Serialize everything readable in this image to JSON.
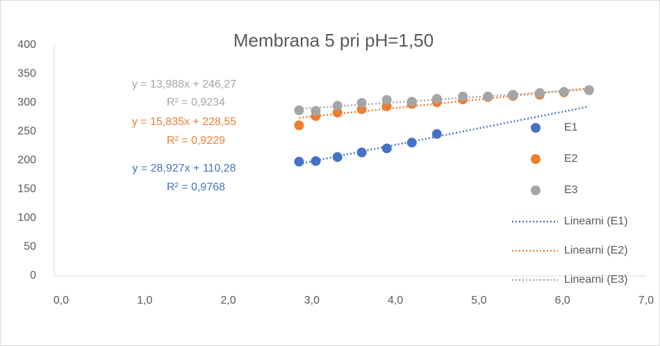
{
  "chart_data": {
    "type": "scatter",
    "title": "Membrana 5 pri pH=1,50",
    "xlim": [
      0,
      7
    ],
    "xticks": [
      {
        "value": 0,
        "label": "0,0"
      },
      {
        "value": 1,
        "label": "1,0"
      },
      {
        "value": 2,
        "label": "2,0"
      },
      {
        "value": 3,
        "label": "3,0"
      },
      {
        "value": 4,
        "label": "4,0"
      },
      {
        "value": 5,
        "label": "5,0"
      },
      {
        "value": 6,
        "label": "6,0"
      },
      {
        "value": 7,
        "label": "7,0"
      }
    ],
    "ylim": [
      0,
      400
    ],
    "yticks": [
      0,
      50,
      100,
      150,
      200,
      250,
      300,
      350,
      400
    ],
    "grid": false,
    "legend": "right",
    "series": [
      {
        "name": "E1",
        "color": "#4472c4",
        "trendline_name": "Linearni (E1)",
        "equation": "y = 28,927x + 110,28",
        "r2": "R² = 0,9768",
        "x": [
          2.93,
          3.13,
          3.39,
          3.68,
          3.98,
          4.28,
          4.58
        ],
        "values": [
          198,
          199,
          206,
          214,
          221,
          231,
          246
        ]
      },
      {
        "name": "E2",
        "color": "#ed7d31",
        "trendline_name": "Linearni (E2)",
        "equation": "y = 15,835x + 228,55",
        "r2": "R² = 0,9229",
        "x": [
          2.93,
          3.13,
          3.39,
          3.68,
          3.98,
          4.28,
          4.58,
          4.89,
          5.19,
          5.49,
          5.81,
          6.1,
          6.4
        ],
        "values": [
          261,
          277,
          283,
          289,
          294,
          298,
          301,
          306,
          310,
          312,
          314,
          318,
          322
        ]
      },
      {
        "name": "E3",
        "color": "#a5a5a5",
        "trendline_name": "Linearni (E3)",
        "equation": "y = 13,988x + 246,27",
        "r2": "R² = 0,9234",
        "x": [
          2.93,
          3.13,
          3.39,
          3.68,
          3.98,
          4.28,
          4.58,
          4.89,
          5.19,
          5.49,
          5.81,
          6.1,
          6.4
        ],
        "values": [
          287,
          286,
          295,
          300,
          305,
          302,
          307,
          311,
          311,
          314,
          317,
          319,
          322
        ]
      }
    ]
  }
}
